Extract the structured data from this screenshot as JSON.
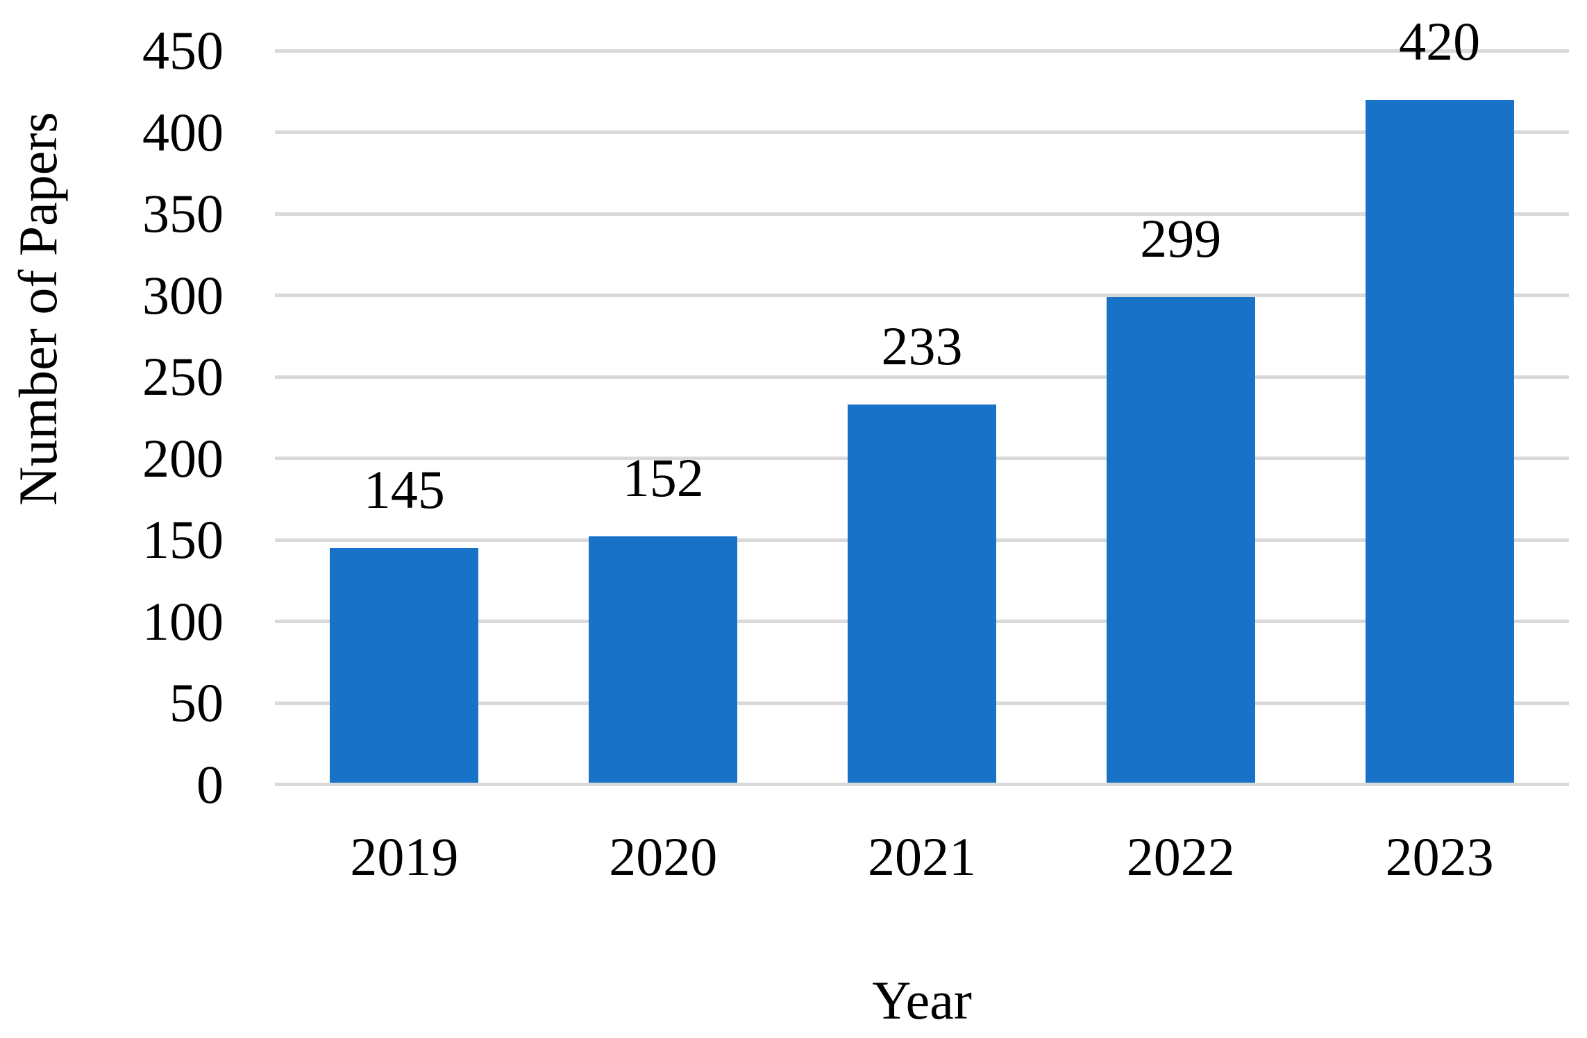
{
  "chart_data": {
    "type": "bar",
    "categories": [
      "2019",
      "2020",
      "2021",
      "2022",
      "2023"
    ],
    "values": [
      145,
      152,
      233,
      299,
      420
    ],
    "data_labels_visible": true,
    "xlabel": "Year",
    "ylabel": "Number of Papers",
    "ylim": [
      0,
      450
    ],
    "yticks": [
      0,
      50,
      100,
      150,
      200,
      250,
      300,
      350,
      400,
      450
    ],
    "grid": "horizontal",
    "legend": "none",
    "colors": {
      "bar": "#1873C8",
      "gridline": "#D9D9D9",
      "text": "#000000",
      "background": "#FFFFFF"
    }
  }
}
